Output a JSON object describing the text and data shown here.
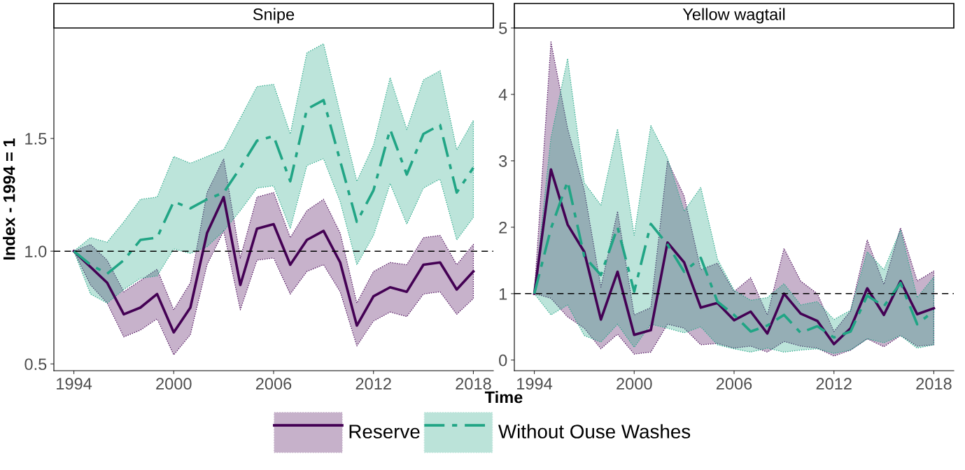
{
  "chart_data": [
    {
      "type": "line",
      "title": "Snipe",
      "xlabel": "Time",
      "ylabel": "Index - 1994 = 1",
      "legend": "bottom",
      "x": [
        1994,
        1995,
        1996,
        1997,
        1998,
        1999,
        2000,
        2001,
        2002,
        2003,
        2004,
        2005,
        2006,
        2007,
        2008,
        2009,
        2010,
        2011,
        2012,
        2013,
        2014,
        2015,
        2016,
        2017,
        2018
      ],
      "xlim": [
        1992.8,
        2019.2
      ],
      "xticks": [
        1994,
        2000,
        2006,
        2012,
        2018
      ],
      "ylim": [
        0.47,
        1.99
      ],
      "yticks": [
        0.5,
        {
          "value": 1,
          "label": "1.0"
        },
        1.5
      ],
      "ref_lines": [
        {
          "axis": "y",
          "value": 1,
          "line_style": "dashed",
          "color": "#000000"
        }
      ],
      "series": [
        {
          "name": "Reserve",
          "color": "#440154",
          "line_style": "solid",
          "values": [
            1.0,
            0.93,
            0.86,
            0.72,
            0.75,
            0.81,
            0.64,
            0.75,
            1.08,
            1.24,
            0.85,
            1.1,
            1.12,
            0.94,
            1.05,
            1.09,
            0.95,
            0.67,
            0.8,
            0.84,
            0.82,
            0.94,
            0.95,
            0.83,
            0.91
          ],
          "lower": [
            1.0,
            0.85,
            0.77,
            0.62,
            0.65,
            0.7,
            0.54,
            0.63,
            0.94,
            1.09,
            0.74,
            0.96,
            0.97,
            0.81,
            0.91,
            0.94,
            0.82,
            0.58,
            0.69,
            0.73,
            0.71,
            0.81,
            0.82,
            0.72,
            0.79
          ],
          "upper": [
            1.0,
            1.03,
            0.96,
            0.82,
            0.87,
            0.92,
            0.74,
            0.86,
            1.26,
            1.41,
            0.97,
            1.24,
            1.26,
            1.06,
            1.18,
            1.23,
            1.08,
            0.77,
            0.91,
            0.95,
            0.94,
            1.06,
            1.07,
            0.94,
            1.03
          ]
        },
        {
          "name": "Without Ouse Washes",
          "color": "#21a585",
          "line_style": "dashdot",
          "values": [
            1.0,
            0.94,
            0.9,
            0.96,
            1.05,
            1.06,
            1.22,
            1.19,
            1.23,
            1.26,
            1.37,
            1.49,
            1.51,
            1.31,
            1.63,
            1.67,
            1.4,
            1.13,
            1.27,
            1.54,
            1.34,
            1.52,
            1.56,
            1.26,
            1.37
          ],
          "lower": [
            1.0,
            0.81,
            0.77,
            0.83,
            0.88,
            0.89,
            1.01,
            0.99,
            1.02,
            1.09,
            1.18,
            1.28,
            1.29,
            1.1,
            1.38,
            1.41,
            1.22,
            0.94,
            1.07,
            1.3,
            1.12,
            1.28,
            1.32,
            1.05,
            1.15
          ],
          "upper": [
            1.0,
            1.06,
            1.04,
            1.13,
            1.23,
            1.24,
            1.42,
            1.39,
            1.42,
            1.45,
            1.59,
            1.73,
            1.74,
            1.52,
            1.88,
            1.92,
            1.61,
            1.31,
            1.47,
            1.77,
            1.54,
            1.76,
            1.8,
            1.45,
            1.58
          ]
        }
      ]
    },
    {
      "type": "line",
      "title": "Yellow wagtail",
      "x": [
        1994,
        1995,
        1996,
        1997,
        1998,
        1999,
        2000,
        2001,
        2002,
        2003,
        2004,
        2005,
        2006,
        2007,
        2008,
        2009,
        2010,
        2011,
        2012,
        2013,
        2014,
        2015,
        2016,
        2017,
        2018
      ],
      "xlim": [
        1992.8,
        2019.2
      ],
      "xticks": [
        1994,
        2000,
        2006,
        2012,
        2018
      ],
      "ylim": [
        -0.16,
        5.0
      ],
      "yticks": [
        0,
        1,
        2,
        3,
        4,
        5
      ],
      "ref_lines": [
        {
          "axis": "y",
          "value": 1,
          "line_style": "dashed",
          "color": "#000000"
        }
      ],
      "series": [
        {
          "color": "#440154",
          "line_style": "solid",
          "values": [
            1.0,
            2.87,
            2.04,
            1.63,
            0.61,
            1.33,
            0.38,
            0.45,
            1.77,
            1.47,
            0.79,
            0.86,
            0.6,
            0.73,
            0.4,
            1.0,
            0.7,
            0.59,
            0.24,
            0.48,
            1.08,
            0.68,
            1.19,
            0.69,
            0.78
          ],
          "lower": [
            1.0,
            0.93,
            0.65,
            0.48,
            0.17,
            0.39,
            0.09,
            0.12,
            0.54,
            0.48,
            0.23,
            0.25,
            0.18,
            0.21,
            0.12,
            0.28,
            0.21,
            0.18,
            0.06,
            0.15,
            0.32,
            0.2,
            0.37,
            0.21,
            0.23
          ],
          "upper": [
            1.0,
            4.79,
            3.49,
            2.56,
            1.1,
            2.24,
            0.68,
            0.79,
            3.0,
            2.47,
            1.36,
            1.46,
            1.03,
            1.24,
            0.68,
            1.68,
            1.19,
            1.0,
            0.43,
            0.74,
            1.81,
            1.14,
            1.99,
            1.19,
            1.34
          ]
        },
        {
          "color": "#21a585",
          "line_style": "dashdot",
          "values": [
            1.0,
            1.98,
            2.69,
            1.56,
            1.28,
            2.0,
            1.03,
            2.05,
            1.74,
            1.33,
            1.54,
            0.88,
            0.68,
            0.43,
            0.52,
            0.68,
            0.41,
            0.51,
            0.34,
            0.43,
            0.97,
            0.81,
            1.16,
            0.54,
            0.74
          ],
          "lower": [
            1.0,
            0.68,
            0.83,
            0.37,
            0.27,
            0.54,
            0.19,
            0.54,
            0.48,
            0.41,
            0.5,
            0.23,
            0.17,
            0.12,
            0.18,
            0.12,
            0.15,
            0.17,
            0.1,
            0.15,
            0.32,
            0.26,
            0.37,
            0.18,
            0.23
          ],
          "upper": [
            1.0,
            3.35,
            4.54,
            2.67,
            2.33,
            3.48,
            1.88,
            3.53,
            3.04,
            2.24,
            2.6,
            1.52,
            1.05,
            0.9,
            0.94,
            1.15,
            0.83,
            0.88,
            0.61,
            0.75,
            1.63,
            1.36,
            1.96,
            0.94,
            1.25
          ]
        }
      ]
    }
  ]
}
